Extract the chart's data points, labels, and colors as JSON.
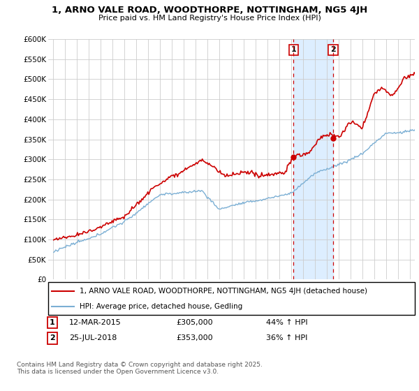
{
  "title": "1, ARNO VALE ROAD, WOODTHORPE, NOTTINGHAM, NG5 4JH",
  "subtitle": "Price paid vs. HM Land Registry's House Price Index (HPI)",
  "legend_line1": "1, ARNO VALE ROAD, WOODTHORPE, NOTTINGHAM, NG5 4JH (detached house)",
  "legend_line2": "HPI: Average price, detached house, Gedling",
  "transaction1_date": "12-MAR-2015",
  "transaction1_price": "£305,000",
  "transaction1_hpi": "44% ↑ HPI",
  "transaction2_date": "25-JUL-2018",
  "transaction2_price": "£353,000",
  "transaction2_hpi": "36% ↑ HPI",
  "footnote": "Contains HM Land Registry data © Crown copyright and database right 2025.\nThis data is licensed under the Open Government Licence v3.0.",
  "ylim": [
    0,
    600000
  ],
  "yticks": [
    0,
    50000,
    100000,
    150000,
    200000,
    250000,
    300000,
    350000,
    400000,
    450000,
    500000,
    550000,
    600000
  ],
  "ytick_labels": [
    "£0",
    "£50K",
    "£100K",
    "£150K",
    "£200K",
    "£250K",
    "£300K",
    "£350K",
    "£400K",
    "£450K",
    "£500K",
    "£550K",
    "£600K"
  ],
  "hpi_color": "#7bafd4",
  "price_color": "#cc0000",
  "vline_color": "#cc0000",
  "shade_color": "#ddeeff",
  "background_color": "#ffffff",
  "grid_color": "#cccccc",
  "sale1_year": 2015,
  "sale1_month": 3,
  "sale1_price": 305000,
  "sale2_year": 2018,
  "sale2_month": 7,
  "sale2_price": 353000
}
